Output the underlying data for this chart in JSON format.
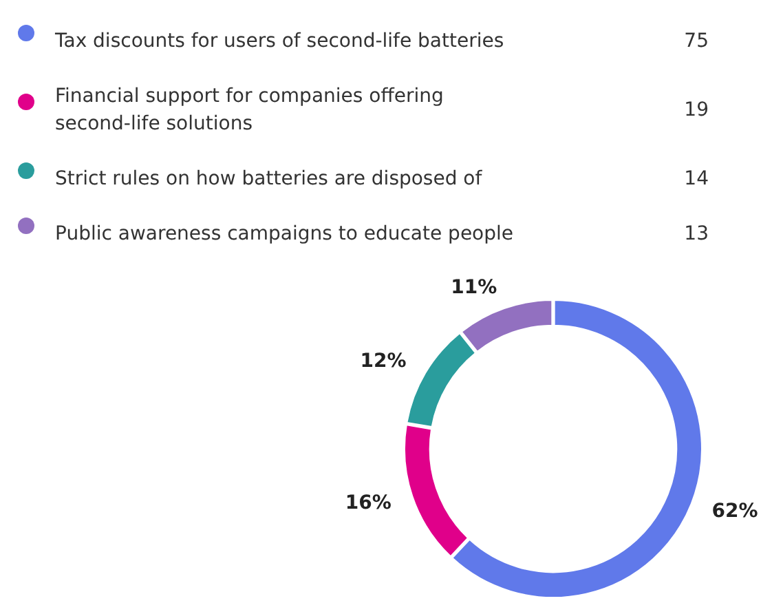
{
  "chart_data": {
    "type": "donut",
    "categories": [
      "Tax discounts for users of second-life batteries",
      "Financial support for companies offering second-life solutions",
      "Strict rules on how batteries are disposed of",
      "Public awareness campaigns to educate people"
    ],
    "values": [
      62.0,
      15.7,
      11.6,
      10.7
    ],
    "annotations": [
      "75",
      "19",
      "14",
      "13"
    ],
    "colors": [
      "#6079ea",
      "#e0008a",
      "#2a9d9d",
      "#9270c0"
    ],
    "value_labels": [
      "62%",
      "16%",
      "12%",
      "11%"
    ],
    "legend": "top"
  }
}
